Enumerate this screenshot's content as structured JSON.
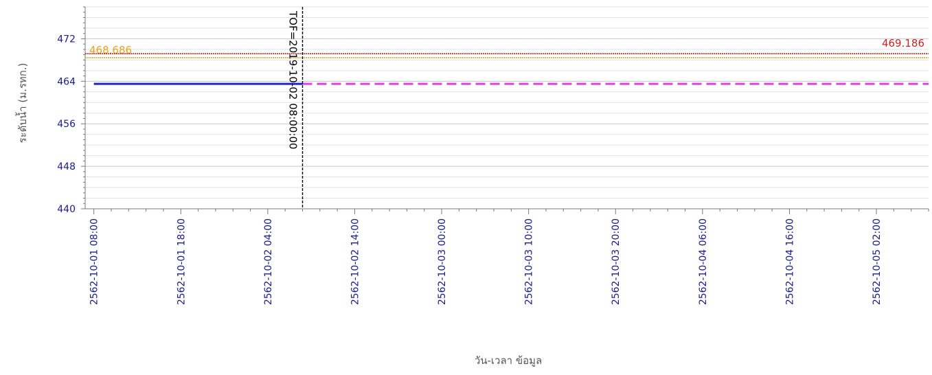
{
  "chart_data": {
    "type": "line",
    "title": "",
    "xlabel": "วัน-เวลา ข้อมูล",
    "ylabel": "ระดับน้ำ (ม.รทก.)",
    "ylim": [
      440,
      478
    ],
    "yticks": [
      440,
      448,
      456,
      464,
      472
    ],
    "xlim": [
      "2562-10-01 07:00",
      "2562-10-05 08:00"
    ],
    "x_ticks": [
      "2562-10-01 08:00",
      "2562-10-01 18:00",
      "2562-10-02 04:00",
      "2562-10-02 14:00",
      "2562-10-03 00:00",
      "2562-10-03 10:00",
      "2562-10-03 20:00",
      "2562-10-04 06:00",
      "2562-10-04 16:00",
      "2562-10-05 02:00"
    ],
    "grid": true,
    "series": [
      {
        "name": "",
        "color": "#2222cc",
        "style": "solid",
        "points": [
          [
            "2562-10-01 08:00",
            463.5
          ],
          [
            "2562-10-02 08:00",
            463.5
          ]
        ]
      },
      {
        "name": "",
        "color": "#e040e0",
        "style": "dashed",
        "points": [
          [
            "2562-10-02 08:00",
            463.5
          ],
          [
            "2562-10-05 08:00",
            463.5
          ]
        ]
      }
    ],
    "reference_lines": [
      {
        "value": 468.686,
        "label": "468.686",
        "color": "#e8a317",
        "label_position": "left"
      },
      {
        "value": 469.186,
        "label": "469.186",
        "color": "#cc2222",
        "label_position": "right"
      }
    ],
    "annotations": [
      {
        "x": "2562-10-02 08:00",
        "label": "TOF=2019-10-02 08:00:00",
        "style": "dashed",
        "color": "#000000"
      }
    ]
  }
}
